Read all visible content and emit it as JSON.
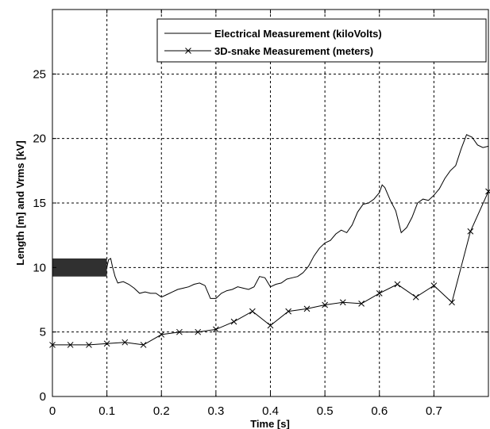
{
  "chart_data": {
    "type": "line",
    "xlabel": "Time [s]",
    "ylabel": "Length [m] and Vrms [kV]",
    "xlim": [
      0,
      0.8
    ],
    "ylim": [
      0,
      30
    ],
    "xticks": [
      0,
      0.1,
      0.2,
      0.3,
      0.4,
      0.5,
      0.6,
      0.7
    ],
    "xtick_labels": [
      "0",
      "0.1",
      "0.2",
      "0.3",
      "0.4",
      "0.5",
      "0.6",
      "0.7"
    ],
    "yticks": [
      0,
      5,
      10,
      15,
      20,
      25
    ],
    "ytick_labels": [
      "0",
      "5",
      "10",
      "15",
      "20",
      "25"
    ],
    "grid": true,
    "legend": "top-right",
    "series": [
      {
        "name": "Electrical Measurement (kiloVolts)",
        "marker": "none",
        "x": [
          0.1,
          0.103,
          0.107,
          0.11,
          0.115,
          0.12,
          0.13,
          0.14,
          0.15,
          0.16,
          0.17,
          0.18,
          0.19,
          0.2,
          0.21,
          0.22,
          0.23,
          0.24,
          0.25,
          0.26,
          0.27,
          0.28,
          0.29,
          0.3,
          0.31,
          0.32,
          0.33,
          0.34,
          0.35,
          0.36,
          0.37,
          0.38,
          0.39,
          0.4,
          0.41,
          0.42,
          0.43,
          0.44,
          0.45,
          0.46,
          0.47,
          0.48,
          0.49,
          0.5,
          0.51,
          0.52,
          0.53,
          0.54,
          0.55,
          0.56,
          0.57,
          0.58,
          0.59,
          0.6,
          0.605,
          0.61,
          0.62,
          0.63,
          0.64,
          0.65,
          0.66,
          0.67,
          0.68,
          0.69,
          0.7,
          0.71,
          0.72,
          0.73,
          0.74,
          0.75,
          0.76,
          0.77,
          0.78,
          0.79,
          0.8
        ],
        "y": [
          10,
          10.6,
          10.7,
          10.1,
          9.3,
          8.8,
          8.9,
          8.7,
          8.4,
          8.0,
          8.1,
          8.0,
          8.0,
          7.7,
          7.9,
          8.1,
          8.3,
          8.4,
          8.5,
          8.7,
          8.8,
          8.6,
          7.6,
          7.6,
          8.0,
          8.2,
          8.3,
          8.5,
          8.4,
          8.3,
          8.5,
          9.3,
          9.2,
          8.5,
          8.7,
          8.8,
          9.1,
          9.2,
          9.3,
          9.6,
          10.1,
          10.9,
          11.5,
          11.9,
          12.1,
          12.6,
          12.9,
          12.7,
          13.3,
          14.3,
          14.9,
          15.0,
          15.3,
          15.8,
          16.4,
          16.2,
          15.2,
          14.4,
          12.7,
          13.1,
          13.9,
          15.0,
          15.3,
          15.2,
          15.6,
          16.1,
          16.9,
          17.5,
          17.9,
          19.2,
          20.3,
          20.1,
          19.5,
          19.3,
          19.4
        ]
      },
      {
        "name": "3D-snake Measurement (meters)",
        "marker": "x",
        "x": [
          0.0,
          0.033,
          0.067,
          0.1,
          0.133,
          0.167,
          0.2,
          0.233,
          0.267,
          0.3,
          0.333,
          0.367,
          0.4,
          0.433,
          0.467,
          0.5,
          0.533,
          0.567,
          0.6,
          0.633,
          0.667,
          0.7,
          0.733,
          0.767,
          0.8
        ],
        "y": [
          4.0,
          4.0,
          4.0,
          4.1,
          4.2,
          4.0,
          4.8,
          5.0,
          5.0,
          5.2,
          5.8,
          6.6,
          5.5,
          6.6,
          6.8,
          7.1,
          7.3,
          7.2,
          8.0,
          8.7,
          7.7,
          8.6,
          7.3,
          12.8,
          15.9
        ]
      }
    ],
    "annotations": [
      {
        "type": "filled-rectangle",
        "x": [
          0,
          0.1
        ],
        "y": [
          9.3,
          10.7
        ],
        "color": "#303030"
      }
    ]
  }
}
